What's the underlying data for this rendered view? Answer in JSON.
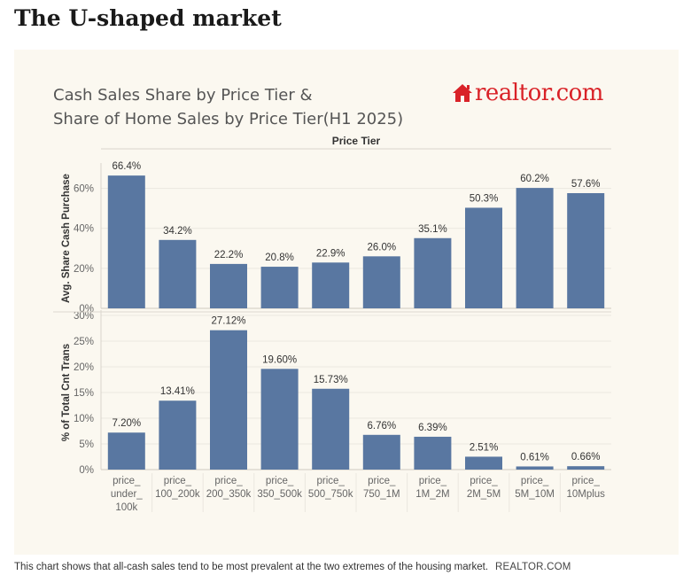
{
  "headline": "The U-shaped market",
  "caption": {
    "text": "This chart shows that all-cash sales tend to be most prevalent at the two extremes of the housing market.",
    "source": "REALTOR.COM"
  },
  "logo": {
    "text": "realtor.com",
    "icon": "house-icon"
  },
  "colors": {
    "bar": "#5977a1",
    "panel": "#fbf8f0",
    "logo": "#d92228"
  },
  "chart_data": [
    {
      "type": "bar",
      "title": [
        "Cash Sales Share by Price Tier &",
        "Share of Home Sales by Price Tier(H1 2025)"
      ],
      "column_header": "Price Tier",
      "ylabel": "Avg. Share Cash Purchase",
      "ylim": [
        0,
        70
      ],
      "yticks": [
        0,
        20,
        40,
        60
      ],
      "ytick_labels": [
        "0%",
        "20%",
        "40%",
        "60%"
      ],
      "categories": [
        "price_ under_ 100k",
        "price_ 100_200k",
        "price_ 200_350k",
        "price_ 350_500k",
        "price_ 500_750k",
        "price_ 750_1M",
        "price_ 1M_2M",
        "price_ 2M_5M",
        "price_ 5M_10M",
        "price_ 10Mplus"
      ],
      "values": [
        66.4,
        34.2,
        22.2,
        20.8,
        22.9,
        26.0,
        35.1,
        50.3,
        60.2,
        57.6
      ],
      "value_labels": [
        "66.4%",
        "34.2%",
        "22.2%",
        "20.8%",
        "22.9%",
        "26.0%",
        "35.1%",
        "50.3%",
        "60.2%",
        "57.6%"
      ]
    },
    {
      "type": "bar",
      "ylabel": "% of Total Cnt Trans",
      "ylim": [
        0,
        30
      ],
      "yticks": [
        0,
        5,
        10,
        15,
        20,
        25,
        30
      ],
      "ytick_labels": [
        "0%",
        "5%",
        "10%",
        "15%",
        "20%",
        "25%",
        "30%"
      ],
      "categories": [
        "price_ under_ 100k",
        "price_ 100_200k",
        "price_ 200_350k",
        "price_ 350_500k",
        "price_ 500_750k",
        "price_ 750_1M",
        "price_ 1M_2M",
        "price_ 2M_5M",
        "price_ 5M_10M",
        "price_ 10Mplus"
      ],
      "category_label_lines": [
        [
          "price_",
          "under_",
          "100k"
        ],
        [
          "price_",
          "100_200k"
        ],
        [
          "price_",
          "200_350k"
        ],
        [
          "price_",
          "350_500k"
        ],
        [
          "price_",
          "500_750k"
        ],
        [
          "price_",
          "750_1M"
        ],
        [
          "price_",
          "1M_2M"
        ],
        [
          "price_",
          "2M_5M"
        ],
        [
          "price_",
          "5M_10M"
        ],
        [
          "price_",
          "10Mplus"
        ]
      ],
      "values": [
        7.2,
        13.41,
        27.12,
        19.6,
        15.73,
        6.76,
        6.39,
        2.51,
        0.61,
        0.66
      ],
      "value_labels": [
        "7.20%",
        "13.41%",
        "27.12%",
        "19.60%",
        "15.73%",
        "6.76%",
        "6.39%",
        "2.51%",
        "0.61%",
        "0.66%"
      ]
    }
  ]
}
